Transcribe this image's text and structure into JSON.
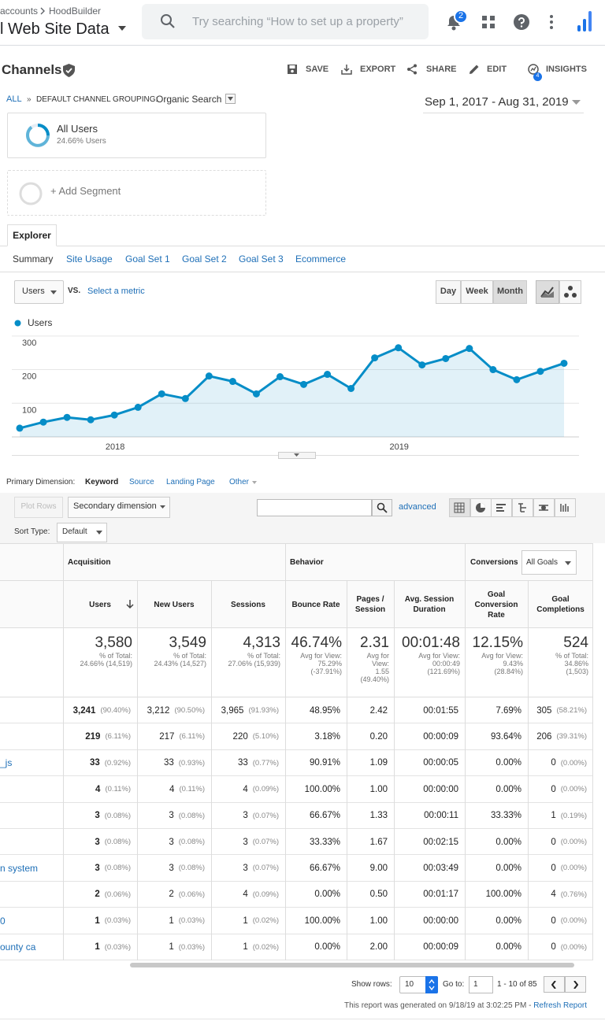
{
  "header": {
    "breadcrumb": [
      "accounts",
      "HoodBuilder"
    ],
    "view": "l Web Site Data",
    "search_placeholder": "Try searching “How to set up a property”",
    "notifications": "2"
  },
  "report": {
    "title": "Channels",
    "actions": [
      "SAVE",
      "EXPORT",
      "SHARE",
      "EDIT",
      "INSIGHTS"
    ],
    "insights_badge": "4"
  },
  "path": {
    "all": "ALL",
    "separator": "»",
    "grouping": "DEFAULT CHANNEL GROUPING:",
    "value": "Organic Search"
  },
  "date_range": "Sep 1, 2017 - Aug 31, 2019",
  "segments": {
    "name": "All Users",
    "detail": "24.66% Users",
    "add": "+ Add Segment"
  },
  "tab": "Explorer",
  "subtabs": [
    "Summary",
    "Site Usage",
    "Goal Set 1",
    "Goal Set 2",
    "Goal Set 3",
    "Ecommerce"
  ],
  "chart_controls": {
    "metric": "Users",
    "vs": "VS.",
    "select": "Select a metric",
    "periods": [
      "Day",
      "Week",
      "Month"
    ]
  },
  "chart": {
    "type": "line",
    "legend": "Users",
    "color": "#058dc7",
    "categories": [
      null,
      null,
      null,
      null,
      "2018",
      null,
      null,
      null,
      null,
      null,
      null,
      null,
      null,
      null,
      null,
      null,
      "2019",
      null,
      null,
      null,
      null,
      null,
      null,
      null
    ],
    "values": [
      26,
      44,
      58,
      51,
      65,
      88,
      128,
      114,
      181,
      165,
      128,
      179,
      156,
      186,
      144,
      235,
      265,
      214,
      233,
      263,
      200,
      170,
      195,
      219
    ],
    "ylim": [
      0,
      316
    ],
    "yticks": [
      100,
      200,
      300
    ],
    "grid": true
  },
  "dimension": {
    "label": "Primary Dimension:",
    "options": [
      "Keyword",
      "Source",
      "Landing Page",
      "Other"
    ]
  },
  "table_controls": {
    "plot_rows": "Plot Rows",
    "secondary": "Secondary dimension",
    "advanced": "advanced",
    "sort_label": "Sort Type:",
    "sort": "Default"
  },
  "table": {
    "groups": [
      "Acquisition",
      "Behavior",
      "Conversions"
    ],
    "goal_select": "All Goals",
    "columns": [
      "Users",
      "New Users",
      "Sessions",
      "Bounce Rate",
      "Pages / Session",
      "Avg. Session Duration",
      "Goal Conversion Rate",
      "Goal Completions"
    ],
    "totals": [
      [
        "3,580",
        "% of Total:",
        "24.66% (14,519)"
      ],
      [
        "3,549",
        "% of Total:",
        "24.43% (14,527)"
      ],
      [
        "4,313",
        "% of Total:",
        "27.06% (15,939)"
      ],
      [
        "46.74%",
        "Avg for View:",
        "75.29%",
        "(-37.91%)"
      ],
      [
        "2.31",
        "Avg for",
        "View:",
        "1.55",
        "(49.40%)"
      ],
      [
        "00:01:48",
        "Avg for View:",
        "00:00:49",
        "(121.69%)"
      ],
      [
        "12.15%",
        "Avg for View:",
        "9.43%",
        "(28.84%)"
      ],
      [
        "524",
        "% of Total:",
        "34.86%",
        "(1,503)"
      ]
    ],
    "rows": [
      [
        "",
        "3,241",
        "(90.40%)",
        "3,212",
        "(90.50%)",
        "3,965",
        "(91.93%)",
        "48.95%",
        "2.42",
        "00:01:55",
        "7.69%",
        "305",
        "(58.21%)"
      ],
      [
        "",
        "219",
        "(6.11%)",
        "217",
        "(6.11%)",
        "220",
        "(5.10%)",
        "3.18%",
        "0.20",
        "00:00:09",
        "93.64%",
        "206",
        "(39.31%)"
      ],
      [
        "_js",
        "33",
        "(0.92%)",
        "33",
        "(0.93%)",
        "33",
        "(0.77%)",
        "90.91%",
        "1.09",
        "00:00:05",
        "0.00%",
        "0",
        "(0.00%)"
      ],
      [
        "",
        "4",
        "(0.11%)",
        "4",
        "(0.11%)",
        "4",
        "(0.09%)",
        "100.00%",
        "1.00",
        "00:00:00",
        "0.00%",
        "0",
        "(0.00%)"
      ],
      [
        "",
        "3",
        "(0.08%)",
        "3",
        "(0.08%)",
        "3",
        "(0.07%)",
        "66.67%",
        "1.33",
        "00:00:11",
        "33.33%",
        "1",
        "(0.19%)"
      ],
      [
        "",
        "3",
        "(0.08%)",
        "3",
        "(0.08%)",
        "3",
        "(0.07%)",
        "33.33%",
        "1.67",
        "00:02:15",
        "0.00%",
        "0",
        "(0.00%)"
      ],
      [
        "n system",
        "3",
        "(0.08%)",
        "3",
        "(0.08%)",
        "3",
        "(0.07%)",
        "66.67%",
        "9.00",
        "00:03:49",
        "0.00%",
        "0",
        "(0.00%)"
      ],
      [
        "",
        "2",
        "(0.06%)",
        "2",
        "(0.06%)",
        "4",
        "(0.09%)",
        "0.00%",
        "0.50",
        "00:01:17",
        "100.00%",
        "4",
        "(0.76%)"
      ],
      [
        "0",
        "1",
        "(0.03%)",
        "1",
        "(0.03%)",
        "1",
        "(0.02%)",
        "100.00%",
        "1.00",
        "00:00:00",
        "0.00%",
        "0",
        "(0.00%)"
      ],
      [
        "ounty ca",
        "1",
        "(0.03%)",
        "1",
        "(0.03%)",
        "1",
        "(0.02%)",
        "0.00%",
        "2.00",
        "00:00:09",
        "0.00%",
        "0",
        "(0.00%)"
      ]
    ]
  },
  "footer": {
    "show_rows": "Show rows:",
    "rows": "10",
    "goto": "Go to:",
    "page": "1",
    "range": "1 - 10 of 85",
    "generated": "This report was generated on 9/18/19 at 3:02:25 PM - ",
    "refresh": "Refresh Report"
  }
}
